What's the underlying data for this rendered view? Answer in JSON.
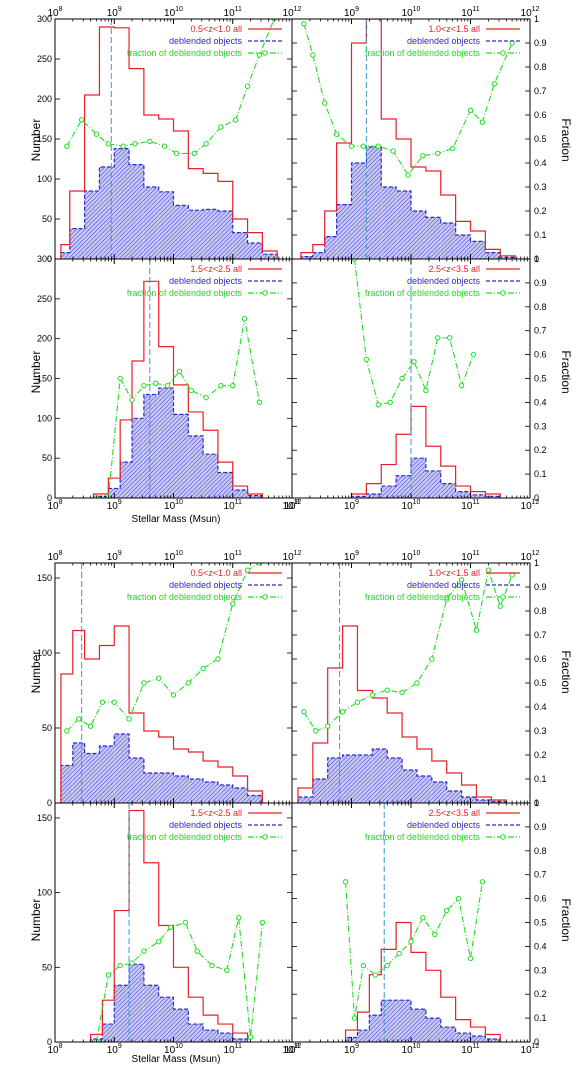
{
  "figures": [
    {
      "ylabel_left": "Number",
      "ylabel_right": "Fraction",
      "xlabel": "Stellar Mass  (Msun)",
      "top_axis_ticks": [
        "10^8",
        "10^9",
        "10^10",
        "10^11",
        "10^12"
      ],
      "bottom_axis_ticks": [
        "10^8",
        "10^9",
        "10^10",
        "10^11",
        "10^12"
      ],
      "left_ticks_top_panel": [
        "300",
        "250",
        "200",
        "150",
        "100",
        "50",
        "0"
      ],
      "left_ticks_bottom_panel": [
        "300",
        "250",
        "200",
        "150",
        "100",
        "50",
        "0"
      ],
      "right_ticks": [
        "1",
        "0.9",
        "0.8",
        "0.7",
        "0.6",
        "0.5",
        "0.4",
        "0.3",
        "0.2",
        "0.1",
        "0"
      ]
    },
    {
      "ylabel_left": "Number",
      "ylabel_right": "Fraction",
      "xlabel": "Stellar Mass  (Msun)",
      "top_axis_ticks": [
        "10^8",
        "10^9",
        "10^10",
        "10^11",
        "10^12"
      ],
      "bottom_axis_ticks": [
        "10^8",
        "10^9",
        "10^10",
        "10^11",
        "10^12"
      ],
      "left_ticks_top_panel": [
        "150",
        "100",
        "50",
        "0"
      ],
      "left_ticks_bottom_panel": [
        "150",
        "100",
        "50",
        "0"
      ],
      "right_ticks": [
        "1",
        "0.9",
        "0.8",
        "0.7",
        "0.6",
        "0.5",
        "0.4",
        "0.3",
        "0.2",
        "0.1",
        "0"
      ]
    }
  ],
  "colors": {
    "all": "#e8202a",
    "deblended": "#2c2ccc",
    "fraction": "#22dd22",
    "median": "#3a9ac8",
    "hatch": "#5a5ae0"
  },
  "chart_data": [
    {
      "type": "bar",
      "panel": "figure1-top-left",
      "legend": [
        "0.5<z<1.0 all",
        "deblended objects",
        "fraction of deblended objects"
      ],
      "xscale": "log",
      "xlim": [
        100000000.0,
        1000000000000.0
      ],
      "ylim": [
        0,
        300
      ],
      "y2lim": [
        0,
        1
      ],
      "logmass_bin_edges": [
        8.1,
        8.25,
        8.5,
        8.75,
        9.0,
        9.25,
        9.5,
        9.75,
        10.0,
        10.25,
        10.5,
        10.75,
        11.0,
        11.25,
        11.5,
        11.75
      ],
      "series": [
        {
          "name": "0.5<z<1.0 all",
          "values": [
            18,
            85,
            205,
            290,
            289,
            238,
            180,
            175,
            160,
            113,
            107,
            97,
            50,
            33,
            10
          ]
        },
        {
          "name": "deblended objects",
          "values": [
            8,
            38,
            85,
            115,
            138,
            118,
            90,
            84,
            67,
            61,
            62,
            60,
            33,
            20,
            6
          ]
        },
        {
          "name": "fraction of deblended objects",
          "x": [
            8.2,
            8.45,
            8.7,
            8.9,
            9.15,
            9.35,
            9.6,
            9.85,
            10.05,
            10.35,
            10.55,
            10.8,
            11.05,
            11.25,
            11.45,
            11.7
          ],
          "values": [
            0.47,
            0.58,
            0.52,
            0.48,
            0.47,
            0.48,
            0.49,
            0.47,
            0.44,
            0.44,
            0.48,
            0.55,
            0.58,
            0.72,
            0.85,
            1.0
          ]
        }
      ],
      "median_logmass": 8.95
    },
    {
      "type": "bar",
      "panel": "figure1-top-right",
      "legend": [
        "1.0<z<1.5 all",
        "deblended objects",
        "fraction of deblended objects"
      ],
      "xscale": "log",
      "xlim": [
        100000000.0,
        1000000000000.0
      ],
      "ylim": [
        0,
        300
      ],
      "y2lim": [
        0,
        1
      ],
      "logmass_bin_edges": [
        8.15,
        8.35,
        8.55,
        8.75,
        9.0,
        9.25,
        9.5,
        9.75,
        10.0,
        10.25,
        10.5,
        10.75,
        11.0,
        11.25,
        11.5,
        11.75
      ],
      "series": [
        {
          "name": "1.0<z<1.5 all",
          "values": [
            8,
            18,
            60,
            145,
            270,
            300,
            175,
            150,
            115,
            110,
            80,
            47,
            35,
            12,
            4
          ]
        },
        {
          "name": "deblended objects",
          "values": [
            3,
            8,
            28,
            68,
            120,
            140,
            90,
            85,
            60,
            52,
            45,
            30,
            22,
            8,
            2
          ]
        },
        {
          "name": "fraction of deblended objects",
          "x": [
            8.2,
            8.35,
            8.55,
            8.75,
            9.0,
            9.2,
            9.45,
            9.7,
            9.95,
            10.2,
            10.45,
            10.7,
            11.0,
            11.2,
            11.4,
            11.7
          ],
          "values": [
            0.98,
            0.85,
            0.65,
            0.52,
            0.47,
            0.47,
            0.47,
            0.45,
            0.35,
            0.43,
            0.44,
            0.46,
            0.62,
            0.57,
            0.73,
            0.9
          ]
        }
      ],
      "median_logmass": 9.25
    },
    {
      "type": "bar",
      "panel": "figure1-bottom-left",
      "legend": [
        "1.5<z<2.5 all",
        "deblended objects",
        "fraction of deblended objects"
      ],
      "xscale": "log",
      "xlim": [
        100000000.0,
        1000000000000.0
      ],
      "ylim": [
        0,
        300
      ],
      "y2lim": [
        0,
        1
      ],
      "logmass_bin_edges": [
        8.65,
        8.9,
        9.1,
        9.3,
        9.5,
        9.75,
        10.0,
        10.25,
        10.5,
        10.75,
        11.0,
        11.25,
        11.5
      ],
      "series": [
        {
          "name": "1.5<z<2.5 all",
          "values": [
            5,
            25,
            98,
            172,
            272,
            190,
            142,
            108,
            85,
            45,
            15,
            5
          ]
        },
        {
          "name": "deblended objects",
          "values": [
            2,
            12,
            45,
            100,
            130,
            138,
            105,
            78,
            55,
            32,
            10,
            3
          ]
        },
        {
          "name": "fraction of deblended objects",
          "x": [
            8.7,
            8.9,
            9.1,
            9.3,
            9.5,
            9.7,
            9.9,
            10.1,
            10.3,
            10.55,
            10.8,
            11.0,
            11.2,
            11.45
          ],
          "values": [
            0,
            0,
            0.5,
            0.41,
            0.47,
            0.48,
            0.47,
            0.53,
            0.45,
            0.42,
            0.47,
            0.47,
            0.75,
            0.4
          ]
        }
      ],
      "median_logmass": 9.6
    },
    {
      "type": "bar",
      "panel": "figure1-bottom-right",
      "legend": [
        "2.5<z<3.5 all",
        "deblended objects",
        "fraction of deblended objects"
      ],
      "xscale": "log",
      "xlim": [
        100000000.0,
        1000000000000.0
      ],
      "ylim": [
        0,
        300
      ],
      "y2lim": [
        0,
        1
      ],
      "logmass_bin_edges": [
        9.0,
        9.25,
        9.5,
        9.75,
        10.0,
        10.25,
        10.5,
        10.75,
        11.0,
        11.25,
        11.5
      ],
      "series": [
        {
          "name": "2.5<z<3.5 all",
          "values": [
            5,
            18,
            42,
            80,
            115,
            65,
            40,
            15,
            8,
            5
          ]
        },
        {
          "name": "deblended objects",
          "values": [
            2,
            5,
            15,
            28,
            50,
            34,
            18,
            8,
            4,
            2
          ]
        },
        {
          "name": "fraction of deblended objects",
          "x": [
            9.05,
            9.25,
            9.45,
            9.65,
            9.85,
            10.05,
            10.25,
            10.45,
            10.65,
            10.85,
            11.05,
            11.25
          ],
          "values": [
            1.0,
            0.58,
            0.39,
            0.4,
            0.5,
            0.57,
            0.45,
            0.67,
            0.67,
            0.47,
            0.6,
            null
          ]
        }
      ],
      "median_logmass": 10.0
    },
    {
      "type": "bar",
      "panel": "figure2-top-left",
      "legend": [
        "0.5<z<1.0 all",
        "deblended objects",
        "fraction of deblended objects"
      ],
      "xscale": "log",
      "xlim": [
        100000000.0,
        1000000000000.0
      ],
      "ylim": [
        0,
        160
      ],
      "y2lim": [
        0,
        1
      ],
      "logmass_bin_edges": [
        8.1,
        8.3,
        8.5,
        8.75,
        9.0,
        9.25,
        9.5,
        9.75,
        10.0,
        10.25,
        10.5,
        10.75,
        11.0,
        11.25,
        11.5
      ],
      "series": [
        {
          "name": "0.5<z<1.0 all",
          "values": [
            86,
            115,
            96,
            105,
            118,
            60,
            48,
            44,
            36,
            34,
            28,
            24,
            18,
            8
          ]
        },
        {
          "name": "deblended objects",
          "values": [
            25,
            40,
            33,
            38,
            46,
            30,
            20,
            20,
            18,
            16,
            14,
            12,
            10,
            5
          ]
        },
        {
          "name": "fraction of deblended objects",
          "x": [
            8.2,
            8.4,
            8.6,
            8.8,
            9.0,
            9.25,
            9.5,
            9.75,
            10.0,
            10.25,
            10.5,
            10.75,
            11.0,
            11.25,
            11.45
          ],
          "values": [
            0.3,
            0.35,
            0.32,
            0.42,
            0.42,
            0.35,
            0.5,
            0.52,
            0.45,
            0.5,
            0.56,
            0.6,
            0.83,
            0.97,
            1.0
          ]
        }
      ],
      "median_logmass": 8.45
    },
    {
      "type": "bar",
      "panel": "figure2-top-right",
      "legend": [
        "1.0<z<1.5 all",
        "deblended objects",
        "fraction of deblended objects"
      ],
      "xscale": "log",
      "xlim": [
        100000000.0,
        1000000000000.0
      ],
      "ylim": [
        0,
        160
      ],
      "y2lim": [
        0,
        1
      ],
      "logmass_bin_edges": [
        8.1,
        8.35,
        8.6,
        8.85,
        9.1,
        9.35,
        9.6,
        9.85,
        10.1,
        10.35,
        10.6,
        10.85,
        11.1,
        11.35,
        11.6
      ],
      "series": [
        {
          "name": "1.0<z<1.5 all",
          "values": [
            10,
            40,
            90,
            118,
            75,
            70,
            60,
            44,
            36,
            28,
            20,
            12,
            4,
            2
          ]
        },
        {
          "name": "deblended objects",
          "values": [
            4,
            16,
            30,
            32,
            32,
            36,
            30,
            22,
            18,
            14,
            8,
            4,
            2,
            1
          ]
        },
        {
          "name": "fraction of deblended objects",
          "x": [
            8.2,
            8.4,
            8.6,
            8.85,
            9.1,
            9.35,
            9.6,
            9.85,
            10.1,
            10.35,
            10.6,
            10.85,
            11.1,
            11.3,
            11.5,
            11.7
          ],
          "values": [
            0.38,
            0.3,
            0.32,
            0.38,
            0.42,
            0.45,
            0.47,
            0.46,
            0.5,
            0.6,
            0.85,
            0.93,
            0.72,
            0.97,
            0.82,
            0.95
          ]
        }
      ],
      "median_logmass": 8.8
    },
    {
      "type": "bar",
      "panel": "figure2-bottom-left",
      "legend": [
        "1.5<z<2.5 all",
        "deblended objects",
        "fraction of deblended objects"
      ],
      "xscale": "log",
      "xlim": [
        100000000.0,
        1000000000000.0
      ],
      "ylim": [
        0,
        160
      ],
      "y2lim": [
        0,
        1
      ],
      "logmass_bin_edges": [
        8.6,
        8.8,
        9.0,
        9.25,
        9.5,
        9.75,
        10.0,
        10.25,
        10.5,
        10.75,
        11.0,
        11.25
      ],
      "series": [
        {
          "name": "1.5<z<2.5 all",
          "values": [
            5,
            28,
            88,
            155,
            120,
            78,
            50,
            30,
            18,
            12,
            6
          ]
        },
        {
          "name": "deblended objects",
          "values": [
            2,
            12,
            38,
            52,
            38,
            30,
            22,
            12,
            8,
            6,
            2
          ]
        },
        {
          "name": "fraction of deblended objects",
          "x": [
            8.7,
            8.9,
            9.1,
            9.3,
            9.5,
            9.75,
            9.95,
            10.2,
            10.4,
            10.65,
            10.9,
            11.1,
            11.3,
            11.5
          ],
          "values": [
            0,
            0.28,
            0.32,
            0.33,
            0.38,
            0.42,
            0.48,
            0.5,
            0.38,
            0.32,
            0.3,
            0.52,
            0.02,
            0.5
          ]
        }
      ],
      "median_logmass": 9.25
    },
    {
      "type": "bar",
      "panel": "figure2-bottom-right",
      "legend": [
        "2.5<z<3.5 all",
        "deblended objects",
        "fraction of deblended objects"
      ],
      "xscale": "log",
      "xlim": [
        100000000.0,
        1000000000000.0
      ],
      "ylim": [
        0,
        160
      ],
      "y2lim": [
        0,
        1
      ],
      "logmass_bin_edges": [
        8.9,
        9.1,
        9.3,
        9.5,
        9.75,
        10.0,
        10.25,
        10.5,
        10.75,
        11.0,
        11.25,
        11.5
      ],
      "series": [
        {
          "name": "2.5<z<3.5 all",
          "values": [
            8,
            20,
            45,
            62,
            80,
            60,
            48,
            30,
            15,
            10,
            5
          ]
        },
        {
          "name": "deblended objects",
          "values": [
            3,
            8,
            18,
            28,
            28,
            22,
            16,
            10,
            6,
            4,
            2
          ]
        },
        {
          "name": "fraction of deblended objects",
          "x": [
            8.9,
            9.05,
            9.2,
            9.4,
            9.6,
            9.8,
            10.0,
            10.2,
            10.4,
            10.6,
            10.8,
            11.0,
            11.2
          ],
          "values": [
            0.67,
            0.1,
            0.32,
            0.28,
            0.32,
            0.37,
            0.42,
            0.52,
            0.45,
            0.55,
            0.6,
            0.35,
            0.67
          ]
        }
      ],
      "median_logmass": 9.55
    }
  ]
}
